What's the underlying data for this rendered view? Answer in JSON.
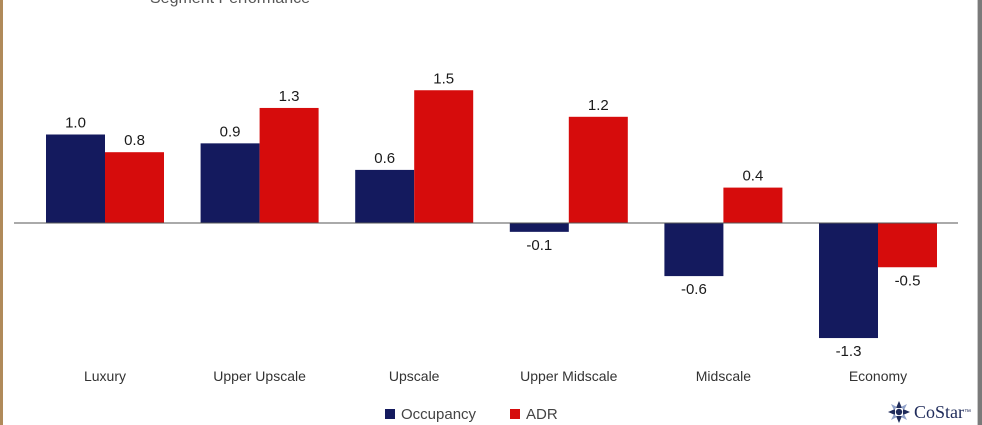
{
  "chart_data": {
    "type": "bar",
    "categories": [
      "Luxury",
      "Upper Upscale",
      "Upscale",
      "Upper Midscale",
      "Midscale",
      "Economy"
    ],
    "series": [
      {
        "name": "Occupancy",
        "color": "#141a5e",
        "values": [
          1.0,
          0.9,
          0.6,
          -0.1,
          -0.6,
          -1.3
        ],
        "labels": [
          "1.0",
          "0.9",
          "0.6",
          "-0.1",
          "-0.6",
          "-1.3"
        ]
      },
      {
        "name": "ADR",
        "color": "#d60c0c",
        "values": [
          0.8,
          1.3,
          1.5,
          1.2,
          0.4,
          -0.5
        ],
        "labels": [
          "0.8",
          "1.3",
          "1.5",
          "1.2",
          "0.4",
          "-0.5"
        ]
      }
    ],
    "ylim": [
      -1.4,
      1.7
    ],
    "legend": "bottom-center",
    "grid": false
  },
  "header": {
    "title_partial": "Segment Performance"
  },
  "logo": {
    "text": "CoStar",
    "tm": "™",
    "icon": "costar-star-icon"
  }
}
